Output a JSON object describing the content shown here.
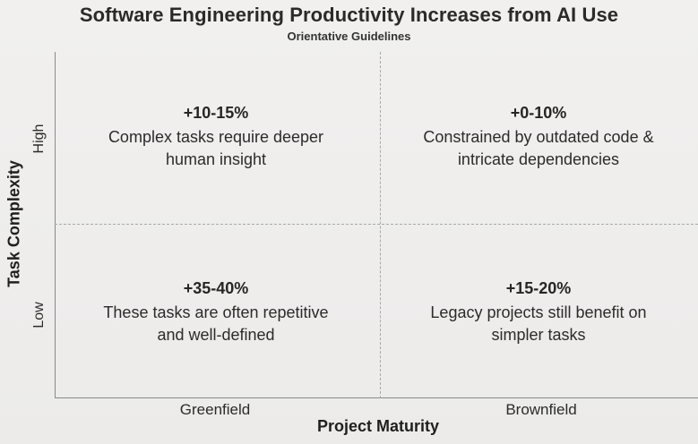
{
  "title": "Software Engineering Productivity Increases from AI Use",
  "subtitle": "Orientative Guidelines",
  "y_axis": {
    "title": "Task Complexity",
    "high": "High",
    "low": "Low"
  },
  "x_axis": {
    "title": "Project Maturity",
    "left": "Greenfield",
    "right": "Brownfield"
  },
  "quadrants": {
    "top_left": {
      "pct": "+10-15%",
      "line1": "Complex tasks require deeper",
      "line2": "human insight"
    },
    "top_right": {
      "pct": "+0-10%",
      "line1": "Constrained by outdated code &",
      "line2": "intricate dependencies"
    },
    "bottom_left": {
      "pct": "+35-40%",
      "line1": "These tasks are often repetitive",
      "line2": "and well-defined"
    },
    "bottom_right": {
      "pct": "+15-20%",
      "line1": "Legacy projects still benefit on",
      "line2": "simpler tasks"
    }
  }
}
